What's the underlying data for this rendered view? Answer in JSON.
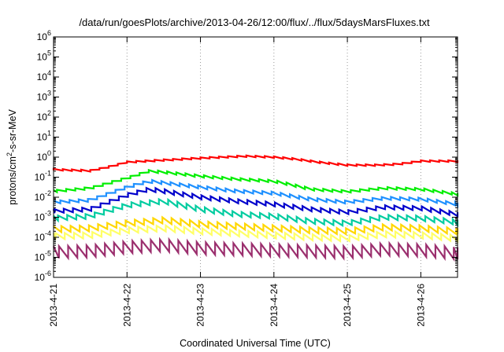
{
  "chart_data": {
    "type": "line",
    "title": "/data/run/goesPlots/archive/2013-04-26/12:00/flux/../flux/5daysMarsFluxes.txt",
    "xlabel": "Coordinated Universal Time (UTC)",
    "ylabel": "protons/cm2-s-sr-MeV",
    "ylabel_parts": {
      "pre": "protons/cm",
      "sup": "2",
      "post": "-s-sr-MeV"
    },
    "y_scale": "log",
    "ylim_exp": [
      -6,
      6
    ],
    "y_ticks": [
      {
        "exp": -6,
        "label": "10",
        "sup": "-6"
      },
      {
        "exp": -5,
        "label": "10",
        "sup": "-5"
      },
      {
        "exp": -4,
        "label": "10",
        "sup": "-4"
      },
      {
        "exp": -3,
        "label": "10",
        "sup": "-3"
      },
      {
        "exp": -2,
        "label": "10",
        "sup": "-2"
      },
      {
        "exp": -1,
        "label": "10",
        "sup": "-1"
      },
      {
        "exp": 0,
        "label": "10",
        "sup": "0"
      },
      {
        "exp": 1,
        "label": "10",
        "sup": "1"
      },
      {
        "exp": 2,
        "label": "10",
        "sup": "2"
      },
      {
        "exp": 3,
        "label": "10",
        "sup": "3"
      },
      {
        "exp": 4,
        "label": "10",
        "sup": "4"
      },
      {
        "exp": 5,
        "label": "10",
        "sup": "5"
      },
      {
        "exp": 6,
        "label": "10",
        "sup": "6"
      }
    ],
    "x_ticks": [
      "2013-4-21",
      "2013-4-22",
      "2013-4-23",
      "2013-4-24",
      "2013-4-25",
      "2013-4-26"
    ],
    "xlim": [
      "2013-04-21T00:00",
      "2013-04-26T12:00"
    ],
    "grid": "vertical dotted at day ticks",
    "legend": "none",
    "sawtooth_period_hours": 3,
    "series": [
      {
        "color": "#ff0000",
        "tooth_amplitude_decades": 0.08,
        "log10_envelope": [
          [
            0,
            -0.62
          ],
          [
            0.5,
            -0.68
          ],
          [
            0.8,
            -0.45
          ],
          [
            1.0,
            -0.25
          ],
          [
            1.5,
            -0.15
          ],
          [
            2.0,
            -0.05
          ],
          [
            2.6,
            0.05
          ],
          [
            3.0,
            0.0
          ],
          [
            3.3,
            -0.1
          ],
          [
            3.6,
            -0.25
          ],
          [
            4.0,
            -0.4
          ],
          [
            4.4,
            -0.4
          ],
          [
            4.7,
            -0.35
          ],
          [
            5.0,
            -0.2
          ],
          [
            5.5,
            -0.2
          ]
        ]
      },
      {
        "color": "#00ee00",
        "tooth_amplitude_decades": 0.12,
        "log10_envelope": [
          [
            0,
            -1.7
          ],
          [
            0.5,
            -1.55
          ],
          [
            1.0,
            -1.05
          ],
          [
            1.3,
            -0.7
          ],
          [
            1.5,
            -0.75
          ],
          [
            2.0,
            -0.95
          ],
          [
            2.5,
            -1.1
          ],
          [
            3.0,
            -1.2
          ],
          [
            3.2,
            -1.35
          ],
          [
            3.5,
            -1.6
          ],
          [
            4.0,
            -1.72
          ],
          [
            4.5,
            -1.55
          ],
          [
            5.0,
            -1.6
          ],
          [
            5.5,
            -1.85
          ]
        ]
      },
      {
        "color": "#1e90ff",
        "tooth_amplitude_decades": 0.15,
        "log10_envelope": [
          [
            0,
            -2.25
          ],
          [
            0.5,
            -2.15
          ],
          [
            1.0,
            -1.5
          ],
          [
            1.3,
            -1.2
          ],
          [
            1.5,
            -1.28
          ],
          [
            2.0,
            -1.5
          ],
          [
            2.5,
            -1.7
          ],
          [
            3.0,
            -1.8
          ],
          [
            3.5,
            -2.1
          ],
          [
            4.0,
            -2.25
          ],
          [
            4.5,
            -2.05
          ],
          [
            5.0,
            -2.1
          ],
          [
            5.5,
            -2.35
          ]
        ]
      },
      {
        "color": "#0000cc",
        "tooth_amplitude_decades": 0.2,
        "log10_envelope": [
          [
            0,
            -2.7
          ],
          [
            0.5,
            -2.6
          ],
          [
            1.0,
            -1.9
          ],
          [
            1.3,
            -1.6
          ],
          [
            1.5,
            -1.7
          ],
          [
            2.0,
            -2.0
          ],
          [
            2.5,
            -2.2
          ],
          [
            3.0,
            -2.35
          ],
          [
            3.5,
            -2.6
          ],
          [
            4.0,
            -2.75
          ],
          [
            4.5,
            -2.5
          ],
          [
            5.0,
            -2.55
          ],
          [
            5.5,
            -2.85
          ]
        ]
      },
      {
        "color": "#00cca0",
        "tooth_amplitude_decades": 0.25,
        "log10_envelope": [
          [
            0,
            -3.05
          ],
          [
            0.5,
            -2.95
          ],
          [
            1.0,
            -2.4
          ],
          [
            1.5,
            -2.2
          ],
          [
            2.0,
            -2.6
          ],
          [
            2.5,
            -2.85
          ],
          [
            3.0,
            -2.95
          ],
          [
            3.5,
            -3.2
          ],
          [
            4.0,
            -3.3
          ],
          [
            4.5,
            -3.0
          ],
          [
            5.0,
            -3.05
          ],
          [
            5.5,
            -3.25
          ]
        ]
      },
      {
        "color": "#ffd700",
        "tooth_amplitude_decades": 0.3,
        "log10_envelope": [
          [
            0,
            -3.6
          ],
          [
            0.5,
            -3.55
          ],
          [
            1.0,
            -3.3
          ],
          [
            1.5,
            -3.15
          ],
          [
            2.0,
            -3.35
          ],
          [
            2.5,
            -3.45
          ],
          [
            3.0,
            -3.55
          ],
          [
            3.5,
            -3.65
          ],
          [
            4.0,
            -3.7
          ],
          [
            4.5,
            -3.5
          ],
          [
            5.0,
            -3.55
          ],
          [
            5.5,
            -3.7
          ]
        ]
      },
      {
        "color": "#ffff66",
        "tooth_amplitude_decades": 0.3,
        "log10_envelope": [
          [
            0,
            -3.95
          ],
          [
            0.5,
            -3.9
          ],
          [
            1.0,
            -3.65
          ],
          [
            1.5,
            -3.55
          ],
          [
            2.0,
            -3.7
          ],
          [
            2.5,
            -3.8
          ],
          [
            3.0,
            -3.9
          ],
          [
            3.5,
            -4.0
          ],
          [
            4.0,
            -4.05
          ],
          [
            4.5,
            -3.85
          ],
          [
            5.0,
            -3.9
          ],
          [
            5.5,
            -4.05
          ]
        ]
      },
      {
        "color": "#9b2f6e",
        "tooth_amplitude_decades": 0.6,
        "log10_envelope": [
          [
            0,
            -4.75
          ],
          [
            0.5,
            -4.7
          ],
          [
            1.0,
            -4.5
          ],
          [
            1.5,
            -4.4
          ],
          [
            2.0,
            -4.55
          ],
          [
            2.5,
            -4.6
          ],
          [
            3.0,
            -4.65
          ],
          [
            3.5,
            -4.7
          ],
          [
            4.0,
            -4.75
          ],
          [
            4.5,
            -4.6
          ],
          [
            5.0,
            -4.65
          ],
          [
            5.5,
            -4.8
          ]
        ]
      }
    ]
  }
}
